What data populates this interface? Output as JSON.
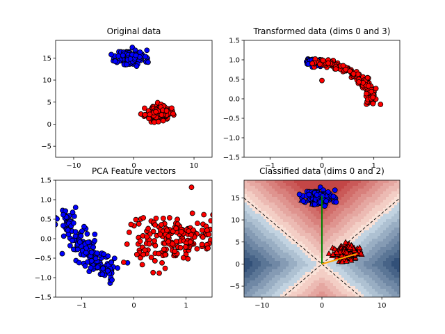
{
  "colors": {
    "class_a": "#0000ff",
    "class_b": "#ff0000",
    "edge": "#000000",
    "vec1": "#008000",
    "vec2": "#ffa500"
  },
  "chart_data": [
    {
      "type": "scatter",
      "title": "Original data",
      "xlim": [
        -13,
        13
      ],
      "ylim": [
        -7.5,
        19
      ],
      "xticks": [
        -10,
        0,
        10
      ],
      "xtick_labels": [
        "−10",
        "0",
        "10"
      ],
      "yticks": [
        -5,
        0,
        5,
        10,
        15
      ],
      "ytick_labels": [
        "−5",
        "0",
        "5",
        "10",
        "15"
      ],
      "grid": false,
      "series": [
        {
          "color": "#0000ff",
          "marker": "circle",
          "n": 160,
          "center": [
            -0.5,
            15
          ],
          "spread": [
            2.1,
            1.6
          ],
          "seed": 11
        },
        {
          "color": "#ff0000",
          "marker": "circle",
          "n": 160,
          "center": [
            4,
            2.5
          ],
          "spread": [
            1.9,
            1.4
          ],
          "seed": 23
        }
      ]
    },
    {
      "type": "scatter",
      "title": "Transformed data (dims 0 and 3)",
      "xlim": [
        -1.5,
        1.5
      ],
      "ylim": [
        -1.5,
        1.5
      ],
      "xticks": [
        -1,
        0,
        1
      ],
      "xtick_labels": [
        "−1",
        "0",
        "1"
      ],
      "yticks": [
        -1.5,
        -1.0,
        -0.5,
        0.0,
        0.5,
        1.0,
        1.5
      ],
      "ytick_labels": [
        "−1.5",
        "−1.0",
        "−0.5",
        "0.0",
        "0.5",
        "1.0",
        "1.5"
      ],
      "grid": false,
      "series": [
        {
          "color": "#0000ff",
          "marker": "circle",
          "n": 60,
          "curve_t": [
            0.0,
            0.14
          ],
          "seed": 5
        },
        {
          "color": "#ff0000",
          "marker": "circle",
          "n": 160,
          "curve_t": [
            0.05,
            1.0
          ],
          "seed": 7
        }
      ],
      "outlier": {
        "x": 0.0,
        "y": 0.47,
        "color": "#ff0000"
      }
    },
    {
      "type": "scatter",
      "title": "PCA Feature vectors",
      "xlim": [
        -1.5,
        1.5
      ],
      "ylim": [
        -1.5,
        1.5
      ],
      "xticks": [
        -1,
        0,
        1
      ],
      "xtick_labels": [
        "−1",
        "0",
        "1"
      ],
      "yticks": [
        -1.5,
        -1.0,
        -0.5,
        0.0,
        0.5,
        1.0,
        1.5
      ],
      "ytick_labels": [
        "−1.5",
        "−1.0",
        "−0.5",
        "0.0",
        "0.5",
        "1.0",
        "1.5"
      ],
      "grid": false,
      "series": [
        {
          "color": "#0000ff",
          "marker": "circle",
          "n": 170,
          "path": [
            [
              -1.42,
              0.75
            ],
            [
              -1.05,
              -0.1
            ],
            [
              -0.72,
              -0.6
            ],
            [
              -0.42,
              -0.9
            ]
          ],
          "spread": [
            0.12,
            0.17
          ],
          "seed": 3
        },
        {
          "color": "#ff0000",
          "marker": "circle",
          "n": 190,
          "center": [
            0.75,
            0.0
          ],
          "spread": [
            0.45,
            0.32
          ],
          "seed": 9,
          "xmin": -0.35
        }
      ]
    },
    {
      "type": "scatter",
      "title": "Classified data (dims 0 and 2)",
      "xlim": [
        -13,
        13
      ],
      "ylim": [
        -7.5,
        19
      ],
      "xticks": [
        -10,
        0,
        10
      ],
      "xtick_labels": [
        "−10",
        "0",
        "10"
      ],
      "yticks": [
        -5,
        0,
        5,
        10,
        15
      ],
      "ytick_labels": [
        "−5",
        "0",
        "5",
        "10",
        "15"
      ],
      "grid": false,
      "background": "decision-contour",
      "decision_boundary_slopes": [
        1.15,
        -1.15
      ],
      "series": [
        {
          "color": "#0000ff",
          "marker": "circle+triangle",
          "n": 170,
          "center": [
            -0.5,
            15
          ],
          "spread": [
            2.1,
            1.6
          ],
          "seed": 11
        },
        {
          "color": "#ff0000",
          "marker": "triangle",
          "n": 170,
          "center": [
            4,
            2.5
          ],
          "spread": [
            1.9,
            1.4
          ],
          "seed": 23
        }
      ],
      "vectors": [
        {
          "color": "#008000",
          "from": [
            0,
            0
          ],
          "to": [
            0,
            15.5
          ]
        },
        {
          "color": "#ffa500",
          "from": [
            0,
            0
          ],
          "to": [
            5.8,
            2.3
          ]
        }
      ]
    }
  ]
}
